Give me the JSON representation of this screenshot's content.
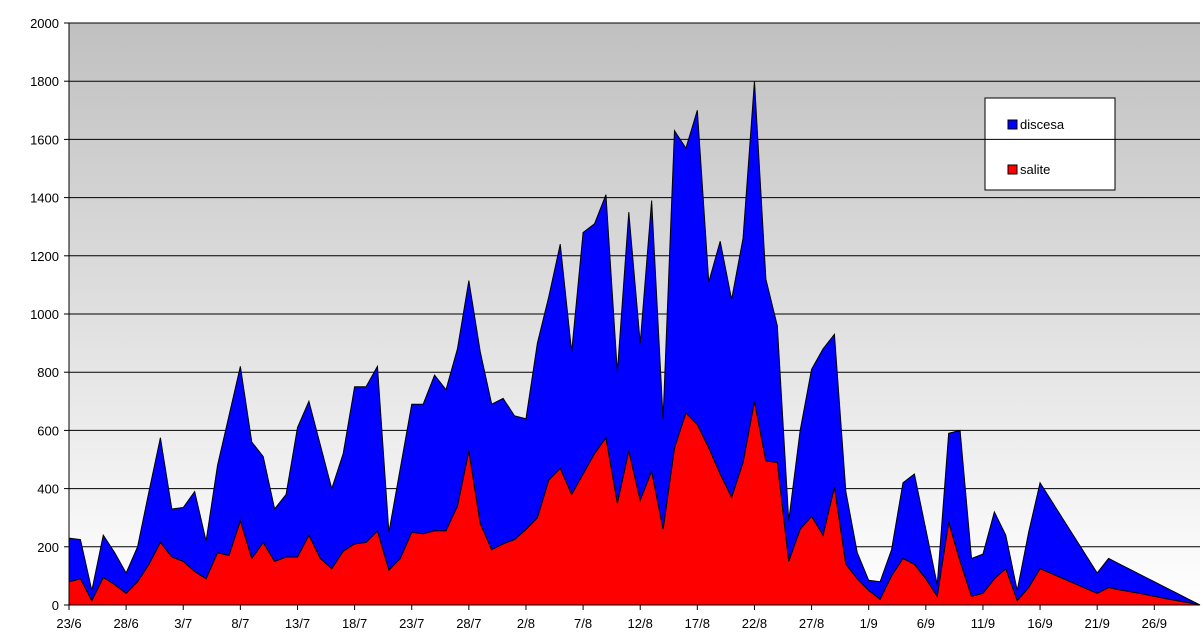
{
  "chart_data": {
    "type": "stacked-area",
    "categories": [
      "23/6",
      null,
      null,
      null,
      null,
      "28/6",
      null,
      null,
      null,
      null,
      "3/7",
      null,
      null,
      null,
      null,
      "8/7",
      null,
      null,
      null,
      null,
      "13/7",
      null,
      null,
      null,
      null,
      "18/7",
      null,
      null,
      null,
      null,
      "23/7",
      null,
      null,
      null,
      null,
      "28/7",
      null,
      null,
      null,
      null,
      "2/8",
      null,
      null,
      null,
      null,
      "7/8",
      null,
      null,
      null,
      null,
      "12/8",
      null,
      null,
      null,
      null,
      "17/8",
      null,
      null,
      null,
      null,
      "22/8",
      null,
      null,
      null,
      null,
      "27/8",
      null,
      null,
      null,
      null,
      "1/9",
      null,
      null,
      null,
      null,
      "6/9",
      null,
      null,
      null,
      null,
      "11/9",
      null,
      null,
      null,
      null,
      "16/9",
      null,
      null,
      null,
      null,
      "21/9",
      null,
      null,
      null,
      null,
      "26/9",
      null,
      null,
      null,
      null
    ],
    "series": [
      {
        "name": "salite",
        "color": "#ff0000",
        "values": [
          80,
          90,
          15,
          95,
          70,
          40,
          80,
          140,
          215,
          165,
          150,
          115,
          90,
          180,
          170,
          290,
          160,
          215,
          150,
          165,
          165,
          240,
          160,
          125,
          185,
          210,
          215,
          255,
          120,
          160,
          250,
          245,
          255,
          255,
          340,
          530,
          280,
          190,
          210,
          225,
          260,
          300,
          430,
          470,
          380,
          450,
          520,
          575,
          350,
          530,
          360,
          460,
          260,
          540,
          660,
          620,
          540,
          450,
          370,
          490,
          700,
          495,
          490,
          150,
          260,
          305,
          240,
          405,
          140,
          90,
          50,
          20,
          100,
          160,
          140,
          90,
          30,
          285,
          150,
          30,
          40,
          90,
          125,
          15,
          60,
          125,
          108,
          91,
          74,
          57,
          40,
          60,
          52,
          45,
          38,
          30,
          22,
          15,
          8,
          0
        ]
      },
      {
        "name": "discesa",
        "color": "#0000ff",
        "values": [
          150,
          135,
          35,
          145,
          110,
          70,
          120,
          250,
          360,
          165,
          185,
          275,
          130,
          300,
          480,
          530,
          400,
          295,
          180,
          215,
          445,
          460,
          390,
          275,
          335,
          540,
          535,
          565,
          130,
          310,
          440,
          445,
          535,
          485,
          540,
          585,
          590,
          500,
          500,
          425,
          380,
          600,
          630,
          770,
          490,
          830,
          790,
          835,
          450,
          820,
          540,
          930,
          380,
          1090,
          910,
          1080,
          570,
          800,
          680,
          770,
          1100,
          625,
          470,
          140,
          340,
          505,
          640,
          525,
          250,
          90,
          35,
          60,
          90,
          260,
          310,
          170,
          40,
          305,
          450,
          130,
          135,
          230,
          115,
          35,
          190,
          295,
          250,
          205,
          160,
          115,
          70,
          100,
          88,
          75,
          62,
          50,
          38,
          25,
          12,
          0
        ]
      }
    ],
    "ylim": [
      0,
      2000
    ],
    "yticks": [
      0,
      200,
      400,
      600,
      800,
      1000,
      1200,
      1400,
      1600,
      1800,
      2000
    ],
    "grid": true,
    "legend": "upper-right"
  }
}
